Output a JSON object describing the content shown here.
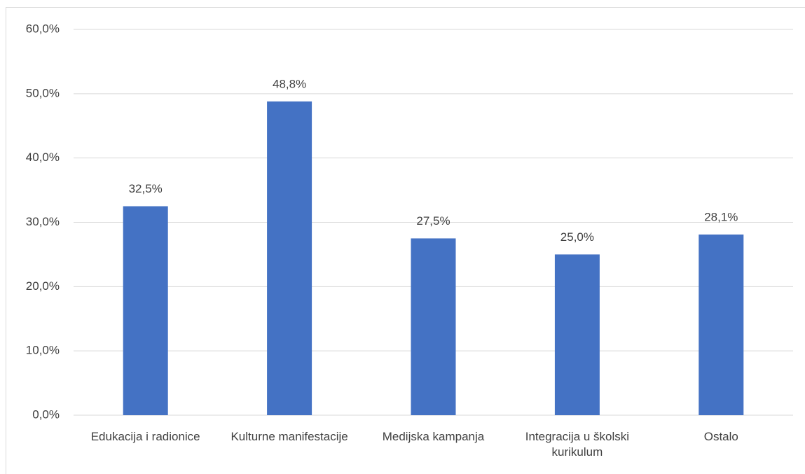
{
  "chart_data": {
    "type": "bar",
    "categories": [
      "Edukacija i radionice",
      "Kulturne manifestacije",
      "Medijska kampanja",
      "Integracija u školski kurikulum",
      "Ostalo"
    ],
    "values": [
      32.5,
      48.8,
      27.5,
      25.0,
      28.1
    ],
    "value_labels": [
      "32,5%",
      "48,8%",
      "27,5%",
      "25,0%",
      "28,1%"
    ],
    "color": "#4472c4",
    "ylim": [
      0,
      60
    ],
    "yticks": [
      {
        "value": 0,
        "label": "0,0%"
      },
      {
        "value": 10,
        "label": "10,0%"
      },
      {
        "value": 20,
        "label": "20,0%"
      },
      {
        "value": 30,
        "label": "30,0%"
      },
      {
        "value": 40,
        "label": "40,0%"
      },
      {
        "value": 50,
        "label": "50,0%"
      },
      {
        "value": 60,
        "label": "60,0%"
      }
    ],
    "grid": true
  }
}
